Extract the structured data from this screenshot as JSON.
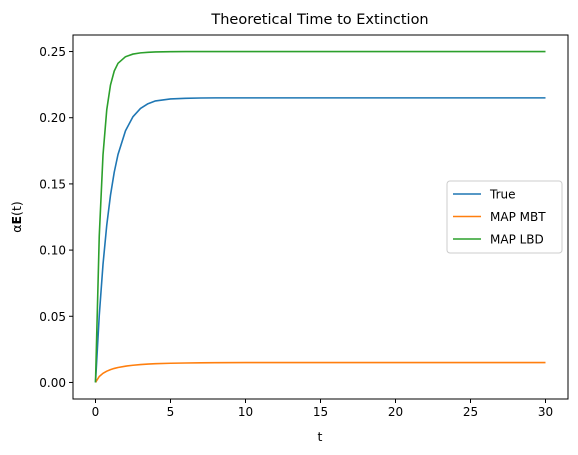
{
  "chart_data": {
    "type": "line",
    "title": "Theoretical Time to Extinction",
    "xlabel": "t",
    "ylabel_prefix": "α",
    "ylabel_bold": "E",
    "ylabel_suffix": "(t)",
    "xlim": [
      -1.5,
      31.5
    ],
    "ylim": [
      -0.0125,
      0.2625
    ],
    "xticks": [
      0,
      5,
      10,
      15,
      20,
      25,
      30
    ],
    "xtick_labels": [
      "0",
      "5",
      "10",
      "15",
      "20",
      "25",
      "30"
    ],
    "yticks": [
      0.0,
      0.05,
      0.1,
      0.15,
      0.2,
      0.25
    ],
    "ytick_labels": [
      "0.00",
      "0.05",
      "0.10",
      "0.15",
      "0.20",
      "0.25"
    ],
    "grid": false,
    "legend_position": "center-right",
    "x": [
      0,
      0.25,
      0.5,
      0.75,
      1,
      1.25,
      1.5,
      2,
      2.5,
      3,
      3.5,
      4,
      5,
      6,
      7,
      8,
      10,
      12,
      15,
      20,
      25,
      30
    ],
    "series": [
      {
        "name": "True",
        "color": "#1f77b4",
        "values": [
          0,
          0.0505,
          0.0892,
          0.1188,
          0.1415,
          0.1589,
          0.1722,
          0.1902,
          0.2008,
          0.207,
          0.2106,
          0.2127,
          0.2142,
          0.2147,
          0.2149,
          0.215,
          0.215,
          0.215,
          0.215,
          0.215,
          0.215,
          0.215
        ]
      },
      {
        "name": "MAP MBT",
        "color": "#ff7f0e",
        "values": [
          0,
          0.0045,
          0.0069,
          0.0085,
          0.0097,
          0.0106,
          0.0113,
          0.0123,
          0.013,
          0.0135,
          0.0139,
          0.0142,
          0.0145,
          0.0147,
          0.0148,
          0.0149,
          0.015,
          0.015,
          0.015,
          0.015,
          0.015,
          0.015
        ]
      },
      {
        "name": "MAP LBD",
        "color": "#2ca02c",
        "values": [
          0,
          0.1106,
          0.1719,
          0.206,
          0.2248,
          0.2353,
          0.2411,
          0.2461,
          0.2481,
          0.249,
          0.2494,
          0.2497,
          0.2499,
          0.25,
          0.25,
          0.25,
          0.25,
          0.25,
          0.25,
          0.25,
          0.25,
          0.25
        ]
      }
    ]
  }
}
